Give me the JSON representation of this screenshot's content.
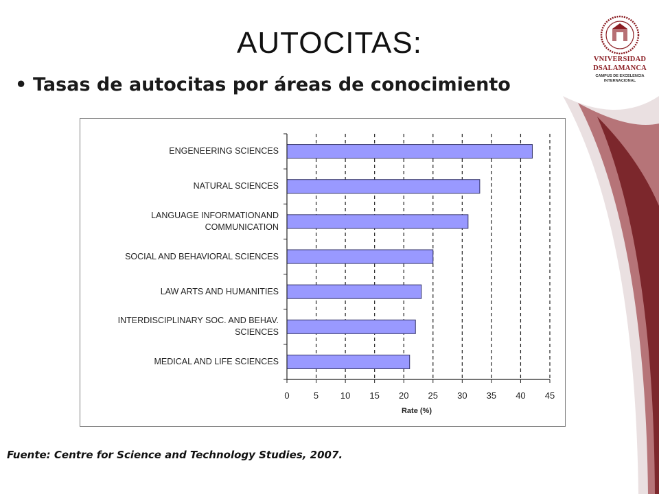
{
  "slide": {
    "title": "AUTOCITAS:",
    "bullet": "Tasas de autocitas por áreas de conocimiento",
    "source": "Fuente: Centre for Science and Technology Studies, 2007."
  },
  "logo": {
    "name_line1": "VNIVERSIDAD",
    "name_line2": "DSALAMANCA",
    "sub_line1": "CAMPUS DE EXCELENCIA",
    "sub_line2": "INTERNACIONAL",
    "colors": {
      "brand": "#8a1c22",
      "swoosh": "#7a1a20"
    }
  },
  "chart_data": {
    "type": "bar",
    "orientation": "horizontal",
    "categories": [
      "ENGENEERING SCIENCES",
      "NATURAL SCIENCES",
      "LANGUAGE INFORMATIONAND\nCOMMUNICATION",
      "SOCIAL AND BEHAVIORAL SCIENCES",
      "LAW ARTS AND HUMANITIES",
      "INTERDISCIPLINARY SOC. AND BEHAV.\nSCIENCES",
      "MEDICAL AND LIFE SCIENCES"
    ],
    "values": [
      42,
      33,
      31,
      25,
      23,
      22,
      21
    ],
    "xlabel": "Rate (%)",
    "ylabel": "",
    "xlim": [
      0,
      45
    ],
    "xticks": [
      "0",
      "5",
      "10",
      "15",
      "20",
      "25",
      "30",
      "35",
      "40",
      "45"
    ],
    "grid": "vertical dashed",
    "colors": {
      "bar_fill": "#9999ff",
      "bar_stroke": "#333366"
    }
  }
}
